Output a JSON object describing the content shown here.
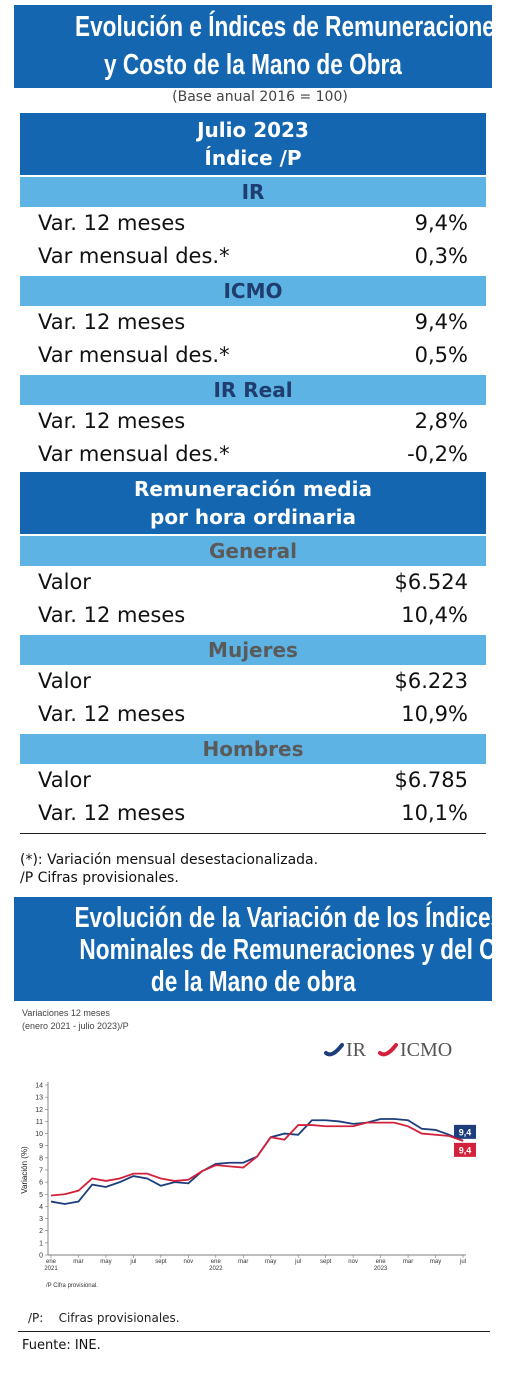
{
  "header": {
    "title_lines": [
      "Evolución e Índices de Remuneraciones",
      "y Costo de la Mano de Obra"
    ],
    "subtitle": "(Base anual 2016 = 100)"
  },
  "index_table": {
    "heading_lines": [
      "Julio 2023",
      "Índice /P"
    ],
    "sections": [
      {
        "label": "IR",
        "rows": [
          [
            "Var. 12 meses",
            "9,4%"
          ],
          [
            "Var mensual des.*",
            "0,3%"
          ]
        ]
      },
      {
        "label": "ICMO",
        "rows": [
          [
            "Var. 12 meses",
            "9,4%"
          ],
          [
            "Var mensual des.*",
            "0,5%"
          ]
        ]
      },
      {
        "label": "IR Real",
        "rows": [
          [
            "Var. 12 meses",
            "2,8%"
          ],
          [
            "Var mensual des.*",
            "-0,2%"
          ]
        ]
      }
    ]
  },
  "wage_table": {
    "heading_lines": [
      "Remuneración media",
      "por hora ordinaria"
    ],
    "sections": [
      {
        "label": "General",
        "rows": [
          [
            "Valor",
            "$6.524"
          ],
          [
            "Var. 12 meses",
            "10,4%"
          ]
        ]
      },
      {
        "label": "Mujeres",
        "rows": [
          [
            "Valor",
            "$6.223"
          ],
          [
            "Var. 12 meses",
            "10,9%"
          ]
        ]
      },
      {
        "label": "Hombres",
        "rows": [
          [
            "Valor",
            "$6.785"
          ],
          [
            "Var. 12 meses",
            "10,1%"
          ]
        ]
      }
    ]
  },
  "footnotes": [
    "(*): Variación mensual desestacionalizada.",
    "/P Cifras provisionales."
  ],
  "chart_header": {
    "title_lines": [
      "Evolución de la Variación de los Índices",
      "Nominales de Remuneraciones y del Costo",
      "de la Mano de obra"
    ]
  },
  "chart_data": {
    "type": "line",
    "subtitle_lines": [
      "Variaciones 12 meses",
      "(enero 2021 - julio 2023)/P"
    ],
    "y_label": "Variación (%)",
    "categories": [
      "ene\n2021",
      null,
      "mar",
      null,
      "may",
      null,
      "jul",
      null,
      "sept",
      null,
      "nov",
      null,
      "ene\n2022",
      null,
      "mar",
      null,
      "may",
      null,
      "jul",
      null,
      "sept",
      null,
      "nov",
      null,
      "ene\n2023",
      null,
      "mar",
      null,
      "may",
      null,
      "jul"
    ],
    "series": [
      {
        "name": "IR",
        "color": "#1d3d7c",
        "values": [
          4.4,
          4.2,
          4.4,
          5.8,
          5.6,
          6.0,
          6.5,
          6.3,
          5.7,
          6.0,
          5.9,
          6.9,
          7.5,
          7.6,
          7.6,
          8.1,
          9.7,
          10.0,
          9.9,
          11.1,
          11.1,
          11.0,
          10.8,
          10.9,
          11.2,
          11.2,
          11.1,
          10.4,
          10.3,
          9.9,
          9.4
        ],
        "value_labels": [
          null,
          null,
          null,
          null,
          null,
          null,
          null,
          null,
          null,
          null,
          null,
          null,
          null,
          null,
          null,
          null,
          null,
          null,
          null,
          null,
          null,
          null,
          null,
          null,
          null,
          null,
          null,
          null,
          null,
          null,
          "9,4"
        ]
      },
      {
        "name": "ICMO",
        "color": "#d3203b",
        "values": [
          4.9,
          5.0,
          5.3,
          6.3,
          6.1,
          6.3,
          6.7,
          6.7,
          6.3,
          6.1,
          6.2,
          6.9,
          7.4,
          7.3,
          7.2,
          8.1,
          9.7,
          9.5,
          10.7,
          10.7,
          10.6,
          10.6,
          10.6,
          10.9,
          10.9,
          10.9,
          10.6,
          10.0,
          9.9,
          9.8,
          9.4
        ],
        "value_labels": [
          null,
          null,
          null,
          null,
          null,
          null,
          null,
          null,
          null,
          null,
          null,
          null,
          null,
          null,
          null,
          null,
          null,
          null,
          null,
          null,
          null,
          null,
          null,
          null,
          null,
          null,
          null,
          null,
          null,
          null,
          "9,4"
        ]
      }
    ],
    "ylim": [
      0,
      14
    ],
    "yticks": [
      0,
      1,
      2,
      3,
      4,
      5,
      6,
      7,
      8,
      9,
      10,
      11,
      12,
      13,
      14
    ],
    "grid": false,
    "legend": "top-right",
    "note": "/P Cifra provisional."
  },
  "chart_note": "/P:    Cifras provisionales.",
  "source": "Fuente: INE."
}
